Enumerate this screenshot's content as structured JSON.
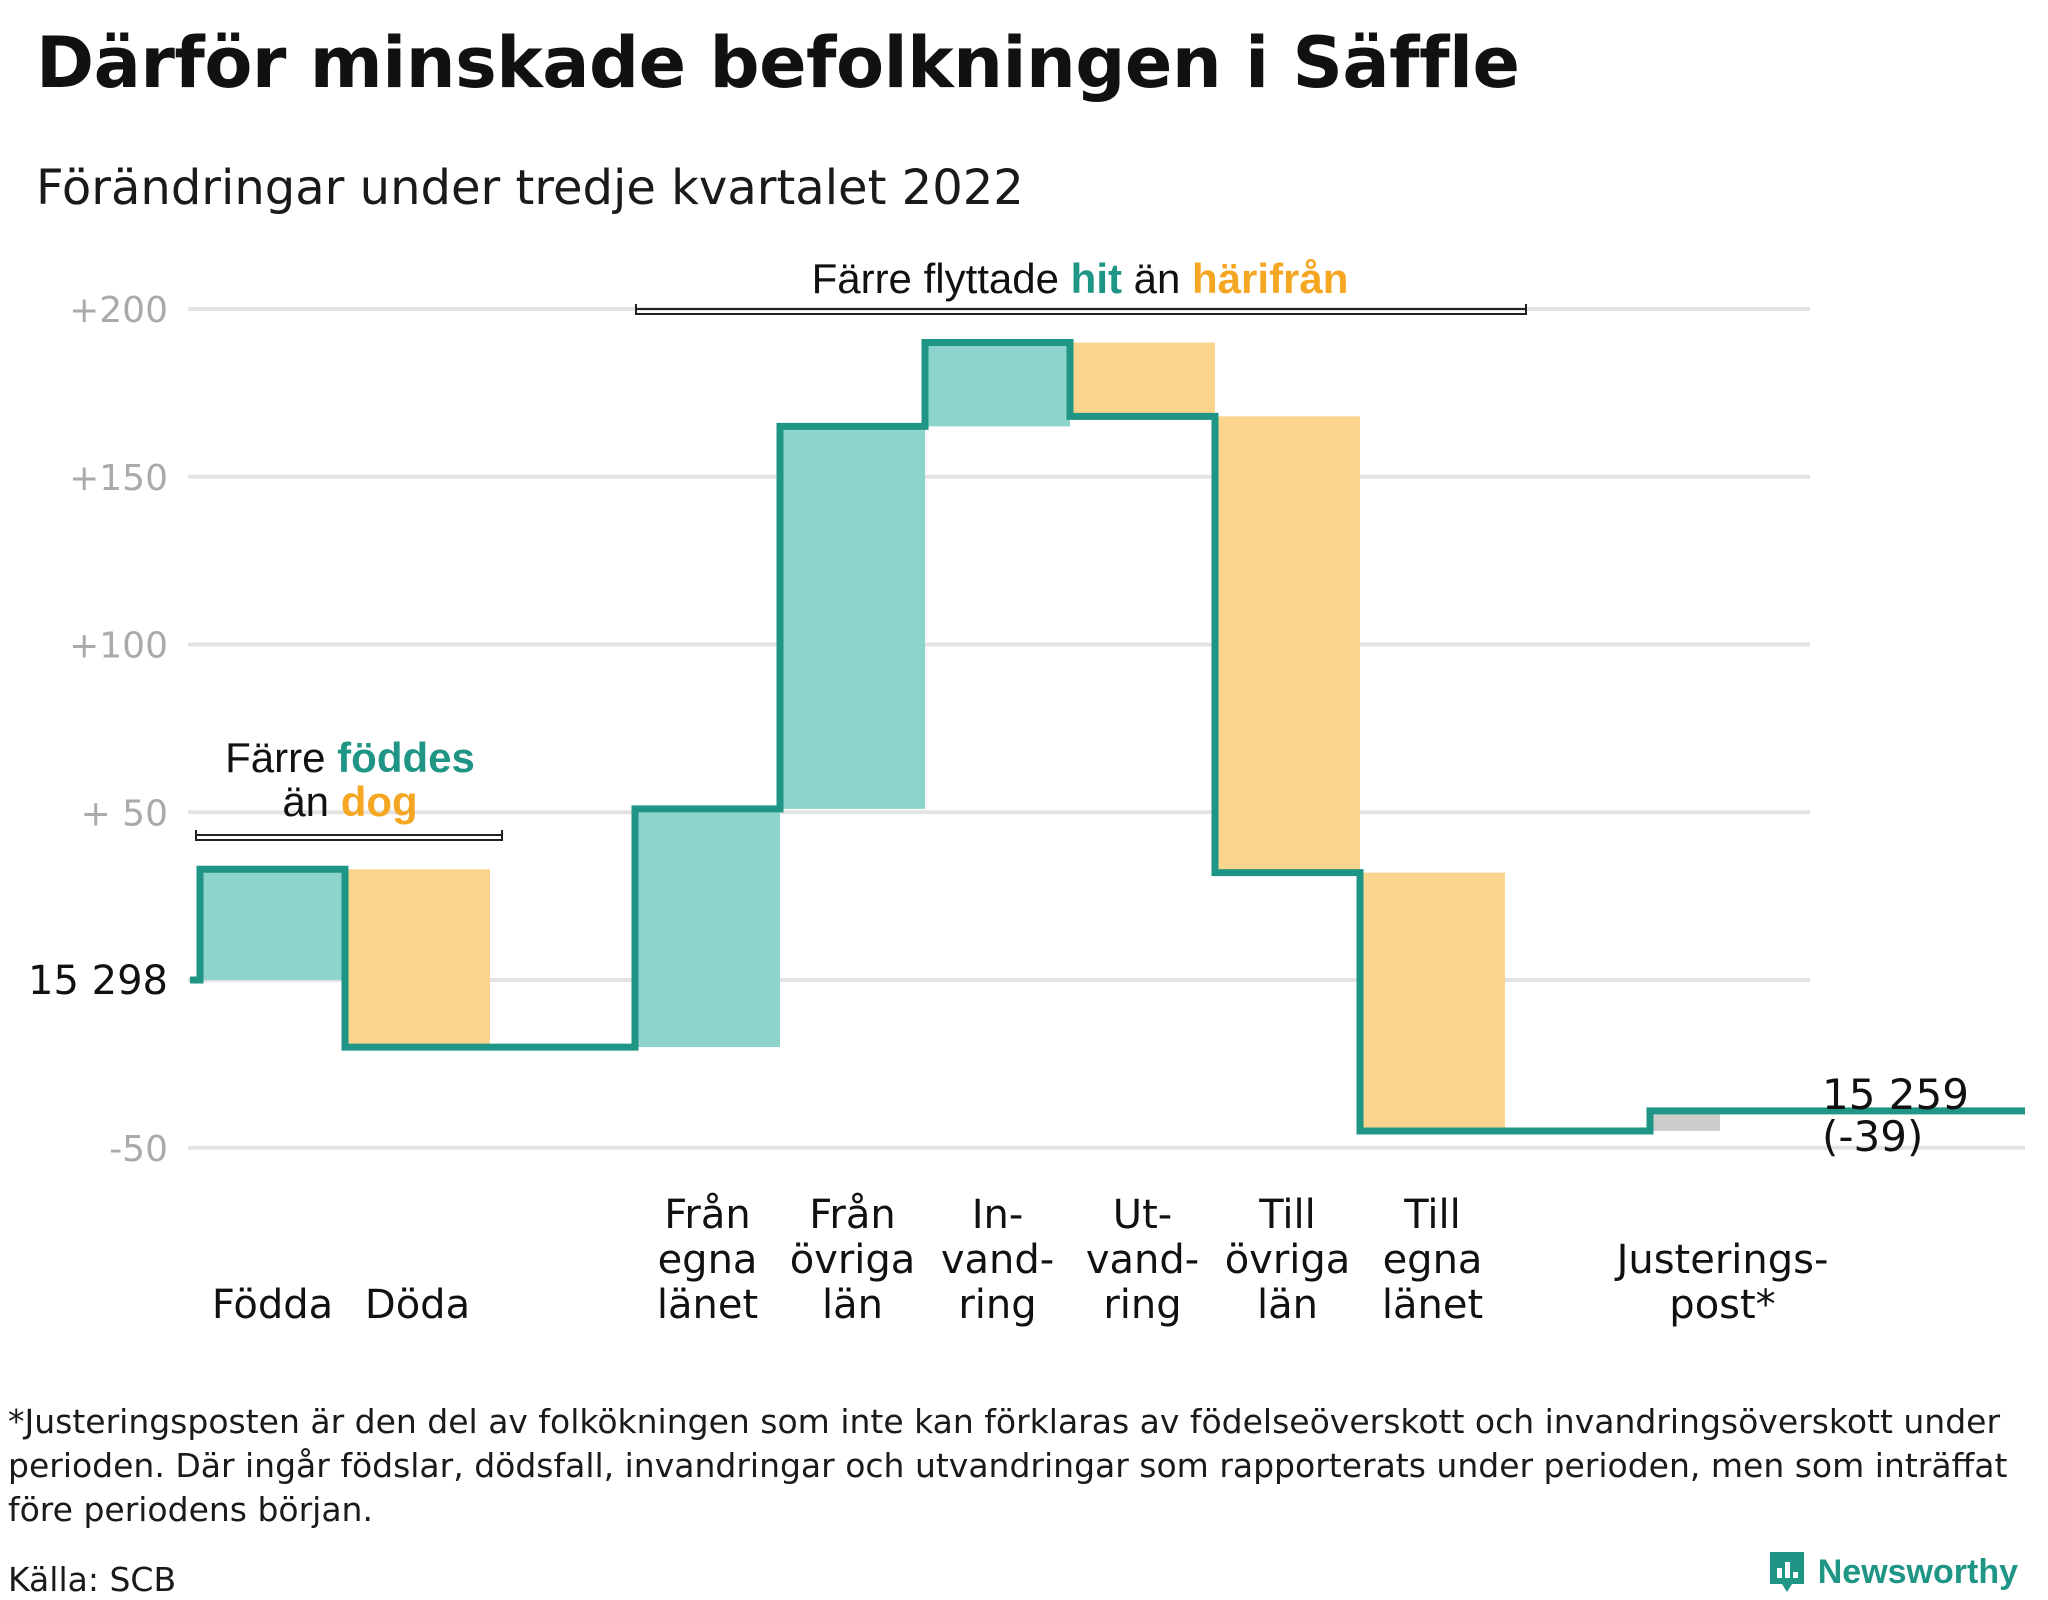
{
  "title": "Därför minskade befolkningen i Säffle",
  "subtitle": "Förändringar under tredje kvartalet 2022",
  "chart_data": {
    "type": "waterfall",
    "start_value": 15298,
    "start_label": "15 298",
    "end_value": 15259,
    "end_label": "15 259",
    "end_change_label": "(-39)",
    "ylim": [
      -55,
      205
    ],
    "y_ticks": [
      {
        "value": 200,
        "label": "+200"
      },
      {
        "value": 150,
        "label": "+150"
      },
      {
        "value": 100,
        "label": "+100"
      },
      {
        "value": 50,
        "label": "+ 50"
      },
      {
        "value": -50,
        "label": "-50"
      }
    ],
    "grid": true,
    "steps": [
      {
        "label_lines": [
          "Födda"
        ],
        "value": 33,
        "kind": "in"
      },
      {
        "label_lines": [
          "Döda"
        ],
        "value": -53,
        "kind": "out"
      },
      {
        "label_lines": [
          "Från",
          "egna",
          "länet"
        ],
        "value": 71,
        "kind": "in"
      },
      {
        "label_lines": [
          "Från",
          "övriga",
          "län"
        ],
        "value": 114,
        "kind": "in"
      },
      {
        "label_lines": [
          "In-",
          "vand-",
          "ring"
        ],
        "value": 25,
        "kind": "in"
      },
      {
        "label_lines": [
          "Ut-",
          "vand-",
          "ring"
        ],
        "value": -22,
        "kind": "out"
      },
      {
        "label_lines": [
          "Till",
          "övriga",
          "län"
        ],
        "value": -136,
        "kind": "out"
      },
      {
        "label_lines": [
          "Till",
          "egna",
          "länet"
        ],
        "value": -77,
        "kind": "out"
      },
      {
        "label_lines": [
          "Justerings-",
          "post*"
        ],
        "value": 6,
        "kind": "adjust"
      }
    ],
    "annotations": {
      "births": {
        "pre": "Färre ",
        "a": "föddes",
        "line2_pre": "än ",
        "b": "dog"
      },
      "migration": {
        "pre": "Färre flyttade ",
        "a": "hit",
        "mid": " än ",
        "b": "härifrån"
      }
    },
    "colors": {
      "line": "#1e9585",
      "in": "#8dd5cc",
      "out": "#fbd58e",
      "adjust": "#cccccc",
      "text_in": "#1e9585",
      "text_out": "#f5a623",
      "grid": "#e3e3e3",
      "tick": "#aaaaaa"
    }
  },
  "footnote": "*Justeringsposten är den del av folkökningen som inte kan förklaras av födelseöverskott och invandringsöverskott under perioden. Där ingår födslar, dödsfall, invandringar och utvandringar som rapporterats under perioden, men som inträffat före periodens början.",
  "source": "Källa: SCB",
  "logo": {
    "text": "Newsworthy",
    "icon": "newsworthy-logo-icon"
  }
}
